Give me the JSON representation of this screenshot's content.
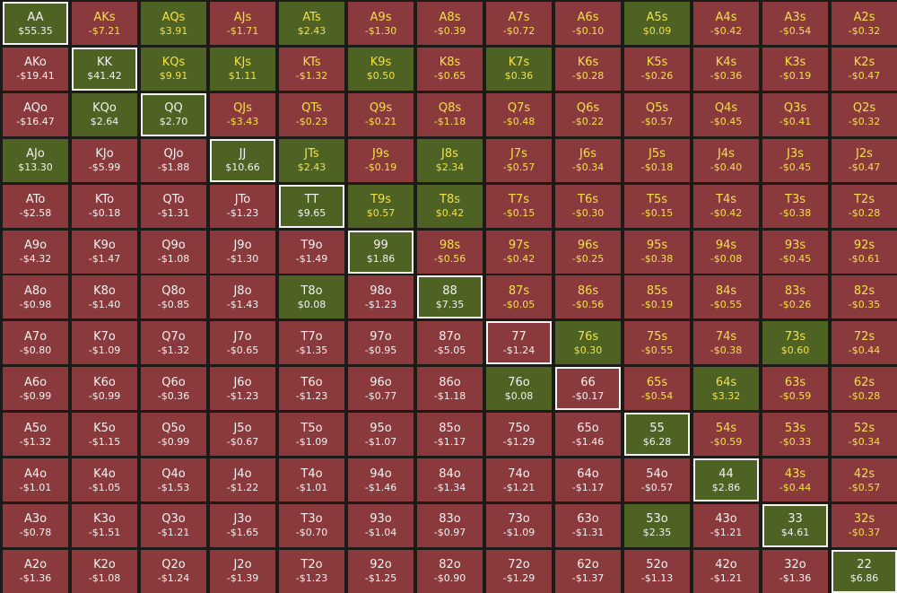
{
  "ranks": [
    "A",
    "K",
    "Q",
    "J",
    "T",
    "9",
    "8",
    "7",
    "6",
    "5",
    "4",
    "3",
    "2"
  ],
  "colors": {
    "positive": "#4d6223",
    "negative": "#8a3a3d",
    "suited_text": "#f3e04a",
    "offsuit_text": "#f2f2f2",
    "pair_border": "#f3f3f3"
  },
  "rows": [
    [
      [
        "AA",
        "$55.35"
      ],
      [
        "AKs",
        "-$7.21"
      ],
      [
        "AQs",
        "$3.91"
      ],
      [
        "AJs",
        "-$1.71"
      ],
      [
        "ATs",
        "$2.43"
      ],
      [
        "A9s",
        "-$1.30"
      ],
      [
        "A8s",
        "-$0.39"
      ],
      [
        "A7s",
        "-$0.72"
      ],
      [
        "A6s",
        "-$0.10"
      ],
      [
        "A5s",
        "$0.09"
      ],
      [
        "A4s",
        "-$0.42"
      ],
      [
        "A3s",
        "-$0.54"
      ],
      [
        "A2s",
        "-$0.32"
      ]
    ],
    [
      [
        "AKo",
        "-$19.41"
      ],
      [
        "KK",
        "$41.42"
      ],
      [
        "KQs",
        "$9.91"
      ],
      [
        "KJs",
        "$1.11"
      ],
      [
        "KTs",
        "-$1.32"
      ],
      [
        "K9s",
        "$0.50"
      ],
      [
        "K8s",
        "-$0.65"
      ],
      [
        "K7s",
        "$0.36"
      ],
      [
        "K6s",
        "-$0.28"
      ],
      [
        "K5s",
        "-$0.26"
      ],
      [
        "K4s",
        "-$0.36"
      ],
      [
        "K3s",
        "-$0.19"
      ],
      [
        "K2s",
        "-$0.47"
      ]
    ],
    [
      [
        "AQo",
        "-$16.47"
      ],
      [
        "KQo",
        "$2.64"
      ],
      [
        "QQ",
        "$2.70"
      ],
      [
        "QJs",
        "-$3.43"
      ],
      [
        "QTs",
        "-$0.23"
      ],
      [
        "Q9s",
        "-$0.21"
      ],
      [
        "Q8s",
        "-$1.18"
      ],
      [
        "Q7s",
        "-$0.48"
      ],
      [
        "Q6s",
        "-$0.22"
      ],
      [
        "Q5s",
        "-$0.57"
      ],
      [
        "Q4s",
        "-$0.45"
      ],
      [
        "Q3s",
        "-$0.41"
      ],
      [
        "Q2s",
        "-$0.32"
      ]
    ],
    [
      [
        "AJo",
        "$13.30"
      ],
      [
        "KJo",
        "-$5.99"
      ],
      [
        "QJo",
        "-$1.88"
      ],
      [
        "JJ",
        "$10.66"
      ],
      [
        "JTs",
        "$2.43"
      ],
      [
        "J9s",
        "-$0.19"
      ],
      [
        "J8s",
        "$2.34"
      ],
      [
        "J7s",
        "-$0.57"
      ],
      [
        "J6s",
        "-$0.34"
      ],
      [
        "J5s",
        "-$0.18"
      ],
      [
        "J4s",
        "-$0.40"
      ],
      [
        "J3s",
        "-$0.45"
      ],
      [
        "J2s",
        "-$0.47"
      ]
    ],
    [
      [
        "ATo",
        "-$2.58"
      ],
      [
        "KTo",
        "-$0.18"
      ],
      [
        "QTo",
        "-$1.31"
      ],
      [
        "JTo",
        "-$1.23"
      ],
      [
        "TT",
        "$9.65"
      ],
      [
        "T9s",
        "$0.57"
      ],
      [
        "T8s",
        "$0.42"
      ],
      [
        "T7s",
        "-$0.15"
      ],
      [
        "T6s",
        "-$0.30"
      ],
      [
        "T5s",
        "-$0.15"
      ],
      [
        "T4s",
        "-$0.42"
      ],
      [
        "T3s",
        "-$0.38"
      ],
      [
        "T2s",
        "-$0.28"
      ]
    ],
    [
      [
        "A9o",
        "-$4.32"
      ],
      [
        "K9o",
        "-$1.47"
      ],
      [
        "Q9o",
        "-$1.08"
      ],
      [
        "J9o",
        "-$1.30"
      ],
      [
        "T9o",
        "-$1.49"
      ],
      [
        "99",
        "$1.86"
      ],
      [
        "98s",
        "-$0.56"
      ],
      [
        "97s",
        "-$0.42"
      ],
      [
        "96s",
        "-$0.25"
      ],
      [
        "95s",
        "-$0.38"
      ],
      [
        "94s",
        "-$0.08"
      ],
      [
        "93s",
        "-$0.45"
      ],
      [
        "92s",
        "-$0.61"
      ]
    ],
    [
      [
        "A8o",
        "-$0.98"
      ],
      [
        "K8o",
        "-$1.40"
      ],
      [
        "Q8o",
        "-$0.85"
      ],
      [
        "J8o",
        "-$1.43"
      ],
      [
        "T8o",
        "$0.08"
      ],
      [
        "98o",
        "-$1.23"
      ],
      [
        "88",
        "$7.35"
      ],
      [
        "87s",
        "-$0.05"
      ],
      [
        "86s",
        "-$0.56"
      ],
      [
        "85s",
        "-$0.19"
      ],
      [
        "84s",
        "-$0.55"
      ],
      [
        "83s",
        "-$0.26"
      ],
      [
        "82s",
        "-$0.35"
      ]
    ],
    [
      [
        "A7o",
        "-$0.80"
      ],
      [
        "K7o",
        "-$1.09"
      ],
      [
        "Q7o",
        "-$1.32"
      ],
      [
        "J7o",
        "-$0.65"
      ],
      [
        "T7o",
        "-$1.35"
      ],
      [
        "97o",
        "-$0.95"
      ],
      [
        "87o",
        "-$5.05"
      ],
      [
        "77",
        "-$1.24"
      ],
      [
        "76s",
        "$0.30"
      ],
      [
        "75s",
        "-$0.55"
      ],
      [
        "74s",
        "-$0.38"
      ],
      [
        "73s",
        "$0.60"
      ],
      [
        "72s",
        "-$0.44"
      ]
    ],
    [
      [
        "A6o",
        "-$0.99"
      ],
      [
        "K6o",
        "-$0.99"
      ],
      [
        "Q6o",
        "-$0.36"
      ],
      [
        "J6o",
        "-$1.23"
      ],
      [
        "T6o",
        "-$1.23"
      ],
      [
        "96o",
        "-$0.77"
      ],
      [
        "86o",
        "-$1.18"
      ],
      [
        "76o",
        "$0.08"
      ],
      [
        "66",
        "-$0.17"
      ],
      [
        "65s",
        "-$0.54"
      ],
      [
        "64s",
        "$3.32"
      ],
      [
        "63s",
        "-$0.59"
      ],
      [
        "62s",
        "-$0.28"
      ]
    ],
    [
      [
        "A5o",
        "-$1.32"
      ],
      [
        "K5o",
        "-$1.15"
      ],
      [
        "Q5o",
        "-$0.99"
      ],
      [
        "J5o",
        "-$0.67"
      ],
      [
        "T5o",
        "-$1.09"
      ],
      [
        "95o",
        "-$1.07"
      ],
      [
        "85o",
        "-$1.17"
      ],
      [
        "75o",
        "-$1.29"
      ],
      [
        "65o",
        "-$1.46"
      ],
      [
        "55",
        "$6.28"
      ],
      [
        "54s",
        "-$0.59"
      ],
      [
        "53s",
        "-$0.33"
      ],
      [
        "52s",
        "-$0.34"
      ]
    ],
    [
      [
        "A4o",
        "-$1.01"
      ],
      [
        "K4o",
        "-$1.05"
      ],
      [
        "Q4o",
        "-$1.53"
      ],
      [
        "J4o",
        "-$1.22"
      ],
      [
        "T4o",
        "-$1.01"
      ],
      [
        "94o",
        "-$1.46"
      ],
      [
        "84o",
        "-$1.34"
      ],
      [
        "74o",
        "-$1.21"
      ],
      [
        "64o",
        "-$1.17"
      ],
      [
        "54o",
        "-$0.57"
      ],
      [
        "44",
        "$2.86"
      ],
      [
        "43s",
        "-$0.44"
      ],
      [
        "42s",
        "-$0.57"
      ]
    ],
    [
      [
        "A3o",
        "-$0.78"
      ],
      [
        "K3o",
        "-$1.51"
      ],
      [
        "Q3o",
        "-$1.21"
      ],
      [
        "J3o",
        "-$1.65"
      ],
      [
        "T3o",
        "-$0.70"
      ],
      [
        "93o",
        "-$1.04"
      ],
      [
        "83o",
        "-$0.97"
      ],
      [
        "73o",
        "-$1.09"
      ],
      [
        "63o",
        "-$1.31"
      ],
      [
        "53o",
        "$2.35"
      ],
      [
        "43o",
        "-$1.21"
      ],
      [
        "33",
        "$4.61"
      ],
      [
        "32s",
        "-$0.37"
      ]
    ],
    [
      [
        "A2o",
        "-$1.36"
      ],
      [
        "K2o",
        "-$1.08"
      ],
      [
        "Q2o",
        "-$1.24"
      ],
      [
        "J2o",
        "-$1.39"
      ],
      [
        "T2o",
        "-$1.23"
      ],
      [
        "92o",
        "-$1.25"
      ],
      [
        "82o",
        "-$0.90"
      ],
      [
        "72o",
        "-$1.29"
      ],
      [
        "62o",
        "-$1.37"
      ],
      [
        "52o",
        "-$1.13"
      ],
      [
        "42o",
        "-$1.21"
      ],
      [
        "32o",
        "-$1.36"
      ],
      [
        "22",
        "$6.86"
      ]
    ]
  ]
}
